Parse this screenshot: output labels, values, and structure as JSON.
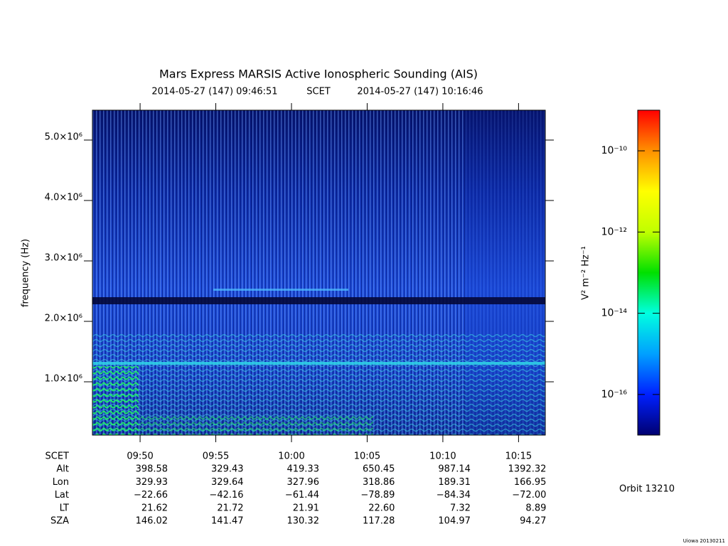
{
  "chart_data": {
    "type": "spectrogram",
    "title": "Mars Express MARSIS Active Ionospheric Sounding (AIS)",
    "subtitle": {
      "start": "2014-05-27 (147) 09:46:51",
      "frame": "SCET",
      "end": "2014-05-27 (147) 10:16:46"
    },
    "ylabel": "frequency (Hz)",
    "ylim": [
      118000,
      5494000
    ],
    "yticks": [
      {
        "value": 1000000,
        "label": "1.0×10⁶"
      },
      {
        "value": 2000000,
        "label": "2.0×10⁶"
      },
      {
        "value": 3000000,
        "label": "3.0×10⁶"
      },
      {
        "value": 4000000,
        "label": "4.0×10⁶"
      },
      {
        "value": 5000000,
        "label": "5.0×10⁶"
      }
    ],
    "xlim": [
      "09:46:51",
      "10:16:46"
    ],
    "xticks": [
      "09:50",
      "09:55",
      "10:00",
      "10:05",
      "10:10",
      "10:15"
    ],
    "ephemeris": {
      "time_label": "SCET",
      "rows": [
        {
          "label": "Alt",
          "values": [
            "398.58",
            "329.43",
            "419.33",
            "650.45",
            "987.14",
            "1392.32"
          ]
        },
        {
          "label": "Lon",
          "values": [
            "329.93",
            "329.64",
            "327.96",
            "318.86",
            "189.31",
            "166.95"
          ]
        },
        {
          "label": "Lat",
          "values": [
            "−22.66",
            "−42.16",
            "−61.44",
            "−78.89",
            "−84.34",
            "−72.00"
          ]
        },
        {
          "label": "LT",
          "values": [
            "21.62",
            "21.72",
            "21.91",
            "22.60",
            "7.32",
            "8.89"
          ]
        },
        {
          "label": "SZA",
          "values": [
            "146.02",
            "141.47",
            "130.32",
            "117.28",
            "104.97",
            "94.27"
          ]
        }
      ]
    },
    "colorbar": {
      "label": "V² m⁻² Hz⁻¹",
      "scale": "log",
      "lim": [
        1e-17,
        1e-09
      ],
      "ticks": [
        {
          "value": 1e-16,
          "label": "10⁻¹⁶"
        },
        {
          "value": 1e-14,
          "label": "10⁻¹⁴"
        },
        {
          "value": 1e-12,
          "label": "10⁻¹²"
        },
        {
          "value": 1e-10,
          "label": "10⁻¹⁰"
        }
      ],
      "colormap": [
        "#000070",
        "#0020ff",
        "#00a0ff",
        "#00ffe0",
        "#00e000",
        "#c0ff00",
        "#ffff00",
        "#ff9000",
        "#ff0000"
      ]
    },
    "orbit": "Orbit 13210",
    "footer": "Uiowa 20130211"
  }
}
